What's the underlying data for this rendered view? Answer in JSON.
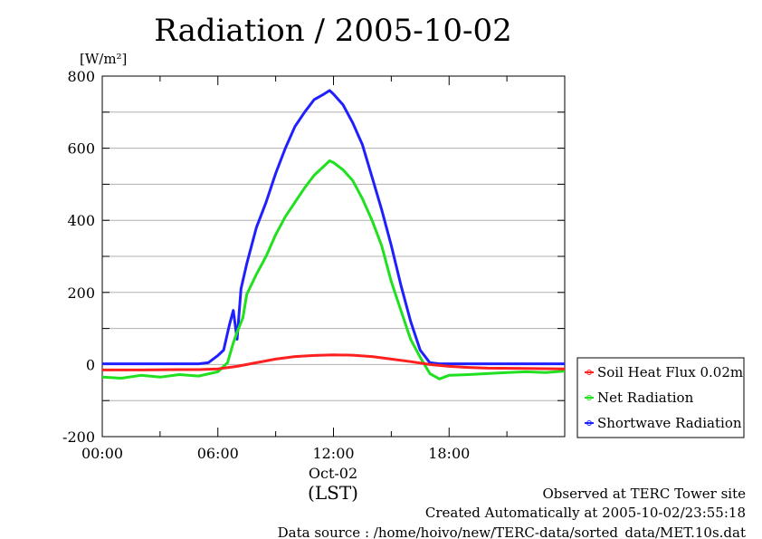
{
  "chart_data": {
    "type": "line",
    "title": "Radiation / 2005-10-02",
    "ylabel": "[W/m²]",
    "xlabel": "(LST)",
    "x_date_label": "Oct-02",
    "ylim": [
      -200,
      800
    ],
    "xlim": [
      0,
      24
    ],
    "y_ticks": [
      -200,
      0,
      200,
      400,
      600,
      800
    ],
    "y_tick_labels": [
      "-200",
      "0",
      "200",
      "400",
      "600",
      "800"
    ],
    "x_ticks": [
      0,
      6,
      12,
      18
    ],
    "x_tick_labels": [
      "00:00",
      "06:00",
      "12:00",
      "18:00"
    ],
    "grid": true,
    "legend_position": "right",
    "series": [
      {
        "name": "Soil Heat Flux 0.02m",
        "color": "#ff2020",
        "x": [
          0,
          2,
          4,
          5,
          6,
          7,
          8,
          9,
          10,
          11,
          12,
          13,
          14,
          15,
          16,
          17,
          18,
          19,
          20,
          22,
          24
        ],
        "y": [
          -15,
          -15,
          -14,
          -14,
          -12,
          -5,
          5,
          15,
          22,
          25,
          27,
          26,
          22,
          15,
          8,
          0,
          -5,
          -8,
          -10,
          -11,
          -12
        ]
      },
      {
        "name": "Net Radiation",
        "color": "#20e020",
        "x": [
          0,
          1,
          2,
          3,
          4,
          5,
          6,
          6.5,
          6.8,
          7.0,
          7.3,
          7.5,
          8,
          8.5,
          9,
          9.5,
          10,
          10.5,
          11,
          11.5,
          11.8,
          12,
          12.5,
          13,
          13.5,
          14,
          14.5,
          15,
          15.5,
          16,
          16.5,
          17,
          17.5,
          18,
          19,
          20,
          21,
          22,
          23,
          24
        ],
        "y": [
          -35,
          -38,
          -30,
          -35,
          -28,
          -32,
          -20,
          5,
          60,
          90,
          130,
          195,
          250,
          300,
          360,
          410,
          450,
          490,
          525,
          550,
          565,
          560,
          540,
          510,
          460,
          400,
          330,
          230,
          150,
          70,
          20,
          -25,
          -40,
          -30,
          -28,
          -25,
          -22,
          -20,
          -22,
          -18
        ]
      },
      {
        "name": "Shortwave Radiation",
        "color": "#2020ff",
        "x": [
          0,
          2,
          4,
          5,
          5.5,
          6,
          6.3,
          6.6,
          6.8,
          7.0,
          7.2,
          7.5,
          8,
          8.5,
          9,
          9.5,
          10,
          10.5,
          11,
          11.5,
          11.8,
          12,
          12.5,
          13,
          13.5,
          14,
          14.5,
          15,
          15.5,
          16,
          16.5,
          17,
          17.5,
          18,
          19,
          20,
          22,
          24
        ],
        "y": [
          2,
          2,
          2,
          2,
          5,
          25,
          40,
          110,
          150,
          70,
          210,
          280,
          380,
          450,
          530,
          600,
          660,
          700,
          735,
          750,
          760,
          750,
          720,
          670,
          610,
          520,
          430,
          330,
          220,
          120,
          40,
          5,
          2,
          2,
          2,
          2,
          2,
          2
        ]
      }
    ]
  },
  "footer": {
    "line1": "Observed at TERC Tower site",
    "line2": "Created Automatically at 2005-10-02/23:55:18",
    "line3": "Data source : /home/hoivo/new/TERC-data/sorted_data/MET.10s.dat"
  }
}
